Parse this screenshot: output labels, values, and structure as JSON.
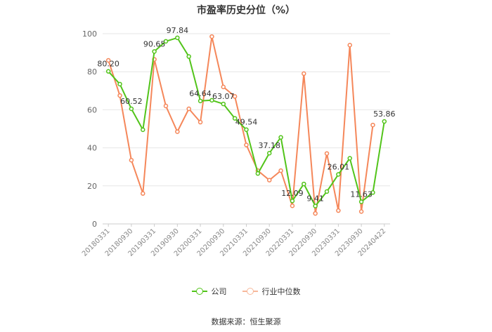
{
  "chart_data": {
    "type": "line",
    "title": "市盈率历史分位（%）",
    "xlabel": "",
    "ylabel": "",
    "ylim": [
      0,
      100
    ],
    "yticks": [
      0,
      20,
      40,
      60,
      80,
      100
    ],
    "x": [
      "20180331",
      "20180630",
      "20180930",
      "20181231",
      "20190331",
      "20190630",
      "20190930",
      "20191231",
      "20200331",
      "20200630",
      "20200930",
      "20201231",
      "20210331",
      "20210630",
      "20210930",
      "20211231",
      "20220331",
      "20220630",
      "20220930",
      "20221231",
      "20230331",
      "20230630",
      "20230930",
      "20231231",
      "20240422"
    ],
    "xtick_labels": [
      "20180331",
      "20180930",
      "20190331",
      "20190930",
      "20200331",
      "20200930",
      "20210331",
      "20210930",
      "20220331",
      "20220930",
      "20230331",
      "20230930",
      "20240422"
    ],
    "grid": true,
    "legend_position": "bottom",
    "series": [
      {
        "name": "公司",
        "color": "#52c41a",
        "values": [
          80.2,
          73.5,
          60.52,
          49.5,
          90.65,
          96.0,
          97.84,
          88.0,
          64.64,
          65.0,
          63.07,
          55.5,
          49.54,
          26.5,
          37.18,
          45.5,
          12.09,
          21.0,
          9.41,
          17.0,
          26.01,
          34.5,
          11.63,
          16.5,
          53.86
        ],
        "labels": {
          "0": "80.20",
          "2": "60.52",
          "4": "90.65",
          "6": "97.84",
          "8": "64.64",
          "10": "63.07",
          "12": "49.54",
          "14": "37.18",
          "16": "12.09",
          "18": "9.41",
          "20": "26.01",
          "22": "11.63",
          "24": "53.86"
        }
      },
      {
        "name": "行业中位数",
        "color": "#f5875a",
        "values": [
          86.0,
          67.5,
          33.5,
          16.0,
          86.5,
          62.0,
          48.5,
          60.5,
          53.5,
          98.5,
          72.0,
          67.0,
          41.5,
          28.0,
          23.0,
          28.0,
          9.5,
          79.0,
          5.5,
          37.0,
          7.0,
          94.0,
          6.5,
          52.0,
          null
        ]
      }
    ]
  },
  "legend": {
    "company_label": "公司",
    "industry_label": "行业中位数"
  },
  "source_text": "数据来源：恒生聚源"
}
